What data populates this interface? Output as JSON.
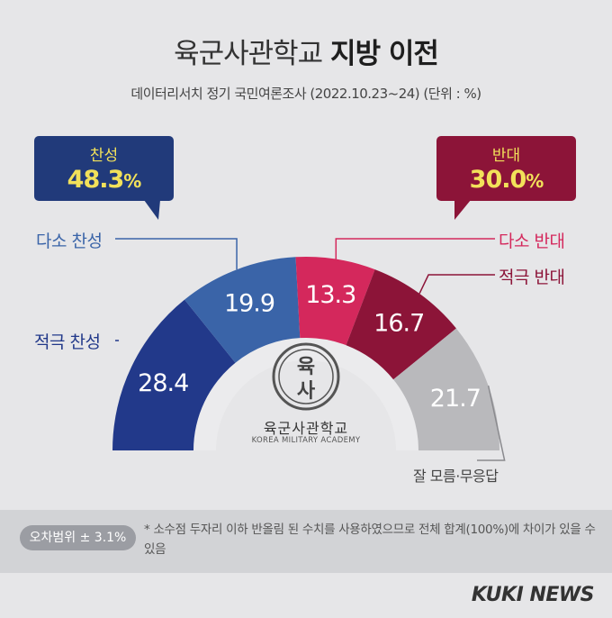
{
  "title_main": "육군사관학교",
  "title_bold": "지방 이전",
  "subtitle": "데이터리서치 정기 국민여론조사 (2022.10.23~24)  (단위 : %)",
  "callouts": {
    "support": {
      "label": "찬성",
      "value": "48.3",
      "unit": "%"
    },
    "oppose": {
      "label": "반대",
      "value": "30.0",
      "unit": "%"
    }
  },
  "chart_data": {
    "type": "pie",
    "unit": "%",
    "categories": [
      "적극 찬성",
      "다소 찬성",
      "다소 반대",
      "적극 반대",
      "잘 모름·무응답"
    ],
    "values": [
      28.4,
      19.9,
      13.3,
      16.7,
      21.7
    ],
    "value_labels": [
      "28.4",
      "19.9",
      "13.3",
      "16.7",
      "21.7"
    ],
    "colors": [
      "#22398a",
      "#3a64a8",
      "#d4285c",
      "#8c1438",
      "#b9b9bc"
    ]
  },
  "logo": {
    "glyph_top": "육",
    "glyph_bottom": "사",
    "name": "육군사관학교",
    "sub": "KOREA MILITARY ACADEMY"
  },
  "footer": {
    "moe": "오차범위 ± 3.1%",
    "note": "* 소수점 두자리 이하 반올림 된 수치를 사용하였으므로 전체 합계(100%)에 차이가 있을 수 있음"
  },
  "credit": "KUKI NEWS"
}
